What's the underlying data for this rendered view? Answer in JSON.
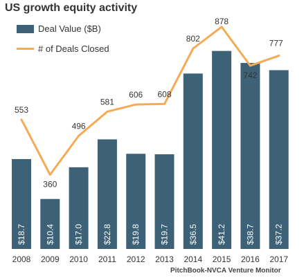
{
  "title": "US growth equity activity",
  "legend": {
    "bar_label": "Deal Value ($B)",
    "line_label": "# of Deals Closed"
  },
  "source": "PitchBook-NVCA Venture Monitor",
  "colors": {
    "bar": "#3d6278",
    "line": "#f7aa55",
    "value_label": "#ffffff",
    "text": "#333333"
  },
  "chart_data": {
    "type": "bar",
    "title": "US growth equity activity",
    "categories": [
      "2008",
      "2009",
      "2010",
      "2011",
      "2012",
      "2013",
      "2014",
      "2015",
      "2016",
      "2017"
    ],
    "series": [
      {
        "name": "Deal Value ($B)",
        "type": "bar",
        "values": [
          18.7,
          10.4,
          17.0,
          22.8,
          19.8,
          19.7,
          36.5,
          41.2,
          38.7,
          37.2
        ],
        "labels": [
          "$18.7",
          "$10.4",
          "$17.0",
          "$22.8",
          "$19.8",
          "$19.7",
          "$36.5",
          "$41.2",
          "$38.7",
          "$37.2"
        ]
      },
      {
        "name": "# of Deals Closed",
        "type": "line",
        "values": [
          553,
          360,
          496,
          581,
          606,
          608,
          802,
          878,
          742,
          777
        ],
        "labels": [
          "553",
          "360",
          "496",
          "581",
          "606",
          "608",
          "802",
          "878",
          "742",
          "777"
        ]
      }
    ],
    "grid": false,
    "legend_position": "top-left"
  }
}
